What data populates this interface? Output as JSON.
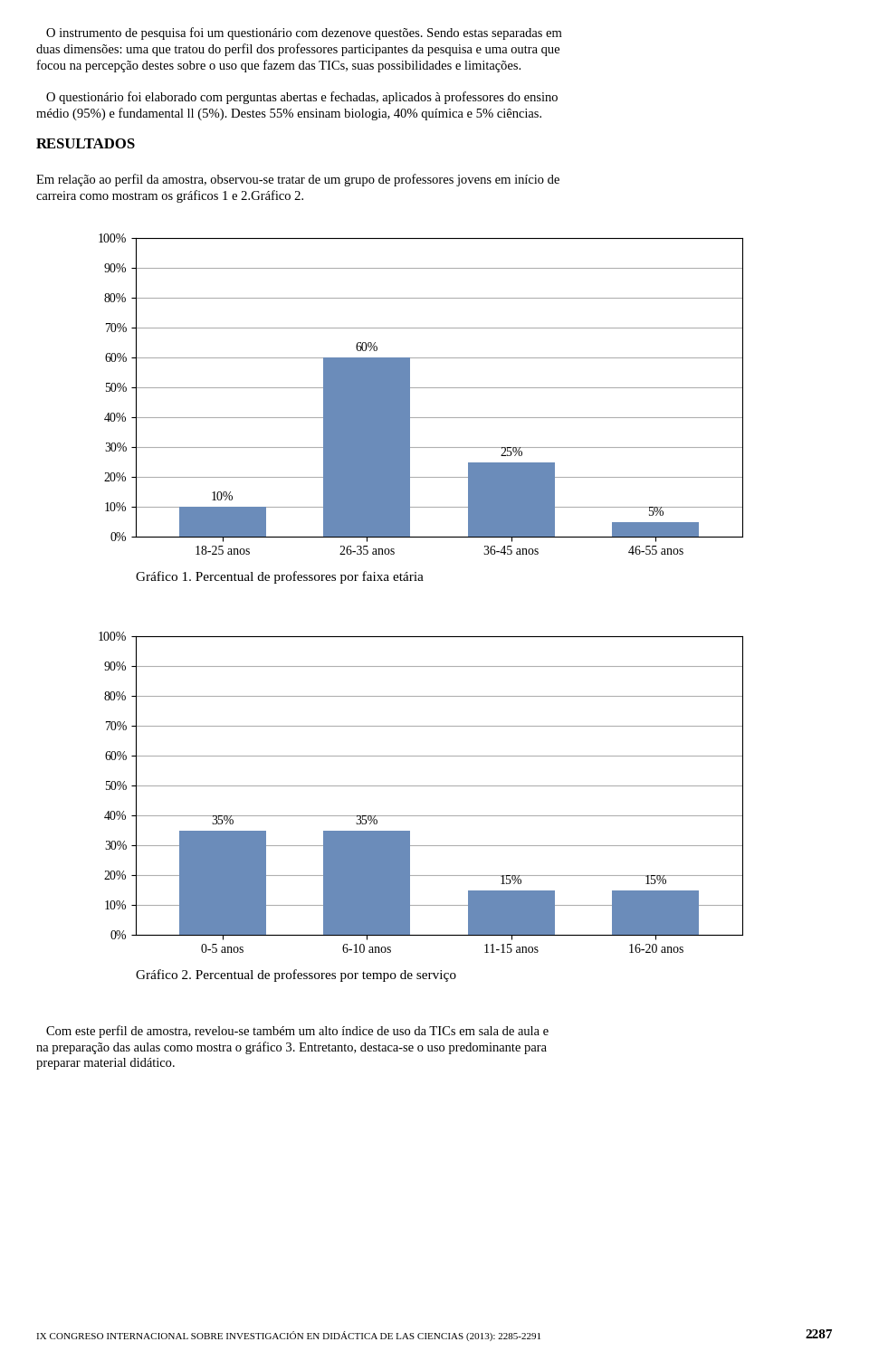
{
  "chart_data": [
    {
      "type": "bar",
      "title": "Gráfico 1. Percentual de professores por faixa etária",
      "annotations": [
        "   O instrumento de pesquisa foi um questionário com dezenove questões. Sendo estas separadas em\nduas dimensões: uma que tratou do perfil dos professores participantes da pesquisa e uma outra que\nfocou na percepção destes sobre o uso que fazem das TICs, suas possibilidades e limitações.",
        "   O questionário foi elaborado com perguntas abertas e fechadas, aplicados à professores do ensino\nmédio (95%) e fundamental ll (5%). Destes 55% ensinam biologia, 40% química e 5% ciências.",
        "RESULTADOS",
        "Em relação ao perfil da amostra, observou-se tratar de um grupo de professores jovens em início de\ncarreira como mostram os gráficos 1 e 2.Gráfico 2."
      ],
      "categories": [
        "18-25 anos",
        "26-35 anos",
        "36-45 anos",
        "46-55 anos"
      ],
      "values": [
        10,
        60,
        25,
        5
      ],
      "value_labels": [
        "10%",
        "60%",
        "25%",
        "5%"
      ],
      "data_labels": true,
      "color": "#6b8cba",
      "ylim": [
        0,
        100
      ],
      "yticks": [
        {
          "value": 0,
          "label": "0%"
        },
        {
          "value": 10,
          "label": "10%"
        },
        {
          "value": 20,
          "label": "20%"
        },
        {
          "value": 30,
          "label": "30%"
        },
        {
          "value": 40,
          "label": "40%"
        },
        {
          "value": 50,
          "label": "50%"
        },
        {
          "value": 60,
          "label": "60%"
        },
        {
          "value": 70,
          "label": "70%"
        },
        {
          "value": 80,
          "label": "80%"
        },
        {
          "value": 90,
          "label": "90%"
        },
        {
          "value": 100,
          "label": "100%"
        }
      ],
      "grid": true
    },
    {
      "type": "bar",
      "title": "Gráfico 2. Percentual de professores por tempo de serviço",
      "annotations": [
        "   Com este perfil de amostra, revelou-se também um alto índice de uso da TICs em sala de aula e\nna preparação das aulas como mostra o gráfico 3. Entretanto, destaca-se o uso predominante para\npreparar material didático.",
        "IX CONGRESO INTERNACIONAL SOBRE INVESTIGACIÓN EN DIDÁCTICA DE LAS CIENCIAS (2013): 2285-2291",
        "2287"
      ],
      "categories": [
        "0-5 anos",
        "6-10 anos",
        "11-15 anos",
        "16-20 anos"
      ],
      "values": [
        35,
        35,
        15,
        15
      ],
      "value_labels": [
        "35%",
        "35%",
        "15%",
        "15%"
      ],
      "data_labels": true,
      "color": "#6b8cba",
      "ylim": [
        0,
        100
      ],
      "yticks": [
        {
          "value": 0,
          "label": "0%"
        },
        {
          "value": 10,
          "label": "10%"
        },
        {
          "value": 20,
          "label": "20%"
        },
        {
          "value": 30,
          "label": "30%"
        },
        {
          "value": 40,
          "label": "40%"
        },
        {
          "value": 50,
          "label": "50%"
        },
        {
          "value": 60,
          "label": "60%"
        },
        {
          "value": 70,
          "label": "70%"
        },
        {
          "value": 80,
          "label": "80%"
        },
        {
          "value": 90,
          "label": "90%"
        },
        {
          "value": 100,
          "label": "100%"
        }
      ],
      "grid": true
    }
  ]
}
